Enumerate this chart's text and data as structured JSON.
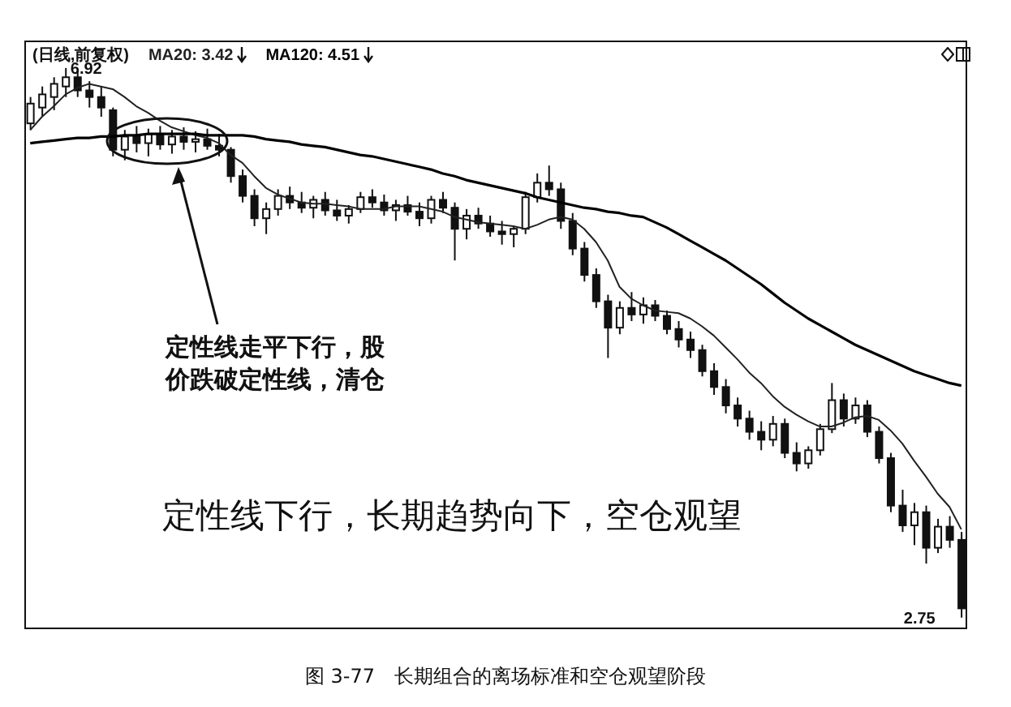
{
  "chart_data": {
    "type": "candlestick",
    "title": "图 3-77　长期组合的离场标准和空仓观望阶段",
    "categories": [
      null,
      null,
      null,
      null,
      null,
      null,
      null,
      null,
      null,
      null,
      null,
      null,
      null,
      null,
      null,
      null,
      null,
      null,
      null,
      null,
      null,
      null,
      null,
      null,
      null,
      null,
      null,
      null,
      null,
      null,
      null,
      null,
      null,
      null,
      null,
      null,
      null,
      null,
      null,
      null,
      null,
      null,
      null,
      null,
      null,
      null,
      null,
      null,
      null,
      null,
      null,
      null,
      null,
      null,
      null,
      null,
      null,
      null,
      null,
      null,
      null,
      null,
      null,
      null,
      null,
      null,
      null,
      null,
      null,
      null,
      null,
      null,
      null,
      null,
      null,
      null,
      null,
      null,
      null,
      null
    ],
    "ohlc": [
      [
        6.5,
        6.7,
        6.45,
        6.65
      ],
      [
        6.62,
        6.78,
        6.55,
        6.72
      ],
      [
        6.7,
        6.85,
        6.6,
        6.8
      ],
      [
        6.78,
        6.92,
        6.7,
        6.85
      ],
      [
        6.85,
        6.9,
        6.7,
        6.75
      ],
      [
        6.75,
        6.82,
        6.62,
        6.7
      ],
      [
        6.7,
        6.78,
        6.55,
        6.62
      ],
      [
        6.6,
        6.62,
        6.25,
        6.3
      ],
      [
        6.3,
        6.45,
        6.22,
        6.4
      ],
      [
        6.4,
        6.48,
        6.28,
        6.35
      ],
      [
        6.35,
        6.46,
        6.25,
        6.42
      ],
      [
        6.42,
        6.48,
        6.3,
        6.34
      ],
      [
        6.34,
        6.45,
        6.27,
        6.4
      ],
      [
        6.4,
        6.47,
        6.3,
        6.36
      ],
      [
        6.36,
        6.44,
        6.28,
        6.38
      ],
      [
        6.38,
        6.46,
        6.3,
        6.33
      ],
      [
        6.33,
        6.42,
        6.25,
        6.3
      ],
      [
        6.3,
        6.32,
        6.05,
        6.1
      ],
      [
        6.1,
        6.15,
        5.9,
        5.95
      ],
      [
        5.95,
        6.0,
        5.72,
        5.78
      ],
      [
        5.78,
        5.9,
        5.66,
        5.85
      ],
      [
        5.85,
        6.0,
        5.8,
        5.95
      ],
      [
        5.95,
        6.02,
        5.85,
        5.9
      ],
      [
        5.9,
        5.98,
        5.82,
        5.86
      ],
      [
        5.86,
        5.95,
        5.78,
        5.92
      ],
      [
        5.92,
        5.98,
        5.8,
        5.84
      ],
      [
        5.84,
        5.92,
        5.76,
        5.8
      ],
      [
        5.8,
        5.88,
        5.74,
        5.85
      ],
      [
        5.85,
        5.98,
        5.82,
        5.94
      ],
      [
        5.94,
        6.0,
        5.86,
        5.9
      ],
      [
        5.9,
        5.96,
        5.8,
        5.84
      ],
      [
        5.84,
        5.92,
        5.76,
        5.88
      ],
      [
        5.88,
        5.95,
        5.8,
        5.83
      ],
      [
        5.83,
        5.9,
        5.72,
        5.78
      ],
      [
        5.78,
        5.95,
        5.74,
        5.92
      ],
      [
        5.92,
        5.98,
        5.82,
        5.86
      ],
      [
        5.86,
        5.9,
        5.46,
        5.7
      ],
      [
        5.7,
        5.85,
        5.62,
        5.8
      ],
      [
        5.8,
        5.86,
        5.7,
        5.74
      ],
      [
        5.74,
        5.8,
        5.64,
        5.68
      ],
      [
        5.68,
        5.76,
        5.58,
        5.66
      ],
      [
        5.66,
        5.72,
        5.56,
        5.7
      ],
      [
        5.7,
        5.98,
        5.66,
        5.94
      ],
      [
        5.94,
        6.12,
        5.9,
        6.05
      ],
      [
        6.05,
        6.18,
        5.95,
        6.0
      ],
      [
        6.0,
        6.05,
        5.7,
        5.76
      ],
      [
        5.76,
        5.82,
        5.5,
        5.55
      ],
      [
        5.55,
        5.6,
        5.3,
        5.35
      ],
      [
        5.35,
        5.4,
        5.1,
        5.15
      ],
      [
        5.15,
        5.2,
        4.72,
        4.95
      ],
      [
        4.95,
        5.15,
        4.9,
        5.1
      ],
      [
        5.1,
        5.22,
        5.0,
        5.05
      ],
      [
        5.05,
        5.18,
        4.98,
        5.12
      ],
      [
        5.12,
        5.16,
        5.0,
        5.04
      ],
      [
        5.04,
        5.08,
        4.9,
        4.94
      ],
      [
        4.94,
        5.0,
        4.8,
        4.86
      ],
      [
        4.86,
        4.92,
        4.72,
        4.78
      ],
      [
        4.78,
        4.82,
        4.58,
        4.62
      ],
      [
        4.62,
        4.68,
        4.44,
        4.5
      ],
      [
        4.5,
        4.56,
        4.3,
        4.36
      ],
      [
        4.36,
        4.42,
        4.2,
        4.26
      ],
      [
        4.26,
        4.32,
        4.1,
        4.16
      ],
      [
        4.16,
        4.24,
        4.02,
        4.1
      ],
      [
        4.1,
        4.28,
        4.05,
        4.22
      ],
      [
        4.22,
        4.26,
        3.96,
        4.0
      ],
      [
        4.0,
        4.08,
        3.86,
        3.92
      ],
      [
        3.92,
        4.05,
        3.88,
        4.02
      ],
      [
        4.02,
        4.22,
        3.98,
        4.18
      ],
      [
        4.18,
        4.53,
        4.15,
        4.4
      ],
      [
        4.4,
        4.45,
        4.2,
        4.26
      ],
      [
        4.26,
        4.42,
        4.22,
        4.36
      ],
      [
        4.36,
        4.4,
        4.12,
        4.16
      ],
      [
        4.16,
        4.2,
        3.92,
        3.96
      ],
      [
        3.96,
        4.0,
        3.55,
        3.6
      ],
      [
        3.6,
        3.72,
        3.4,
        3.45
      ],
      [
        3.45,
        3.62,
        3.3,
        3.55
      ],
      [
        3.55,
        3.6,
        3.16,
        3.28
      ],
      [
        3.28,
        3.5,
        3.24,
        3.44
      ],
      [
        3.44,
        3.52,
        3.28,
        3.34
      ],
      [
        3.34,
        3.4,
        2.75,
        2.82
      ]
    ],
    "series": [
      {
        "name": "MA20: 3.42",
        "type": "line",
        "color": "#222222",
        "values": [
          6.45,
          6.55,
          6.63,
          6.72,
          6.77,
          6.8,
          6.78,
          6.76,
          6.7,
          6.63,
          6.58,
          6.52,
          6.47,
          6.44,
          6.41,
          6.39,
          6.35,
          6.26,
          6.2,
          6.1,
          6.01,
          5.96,
          5.93,
          5.9,
          5.89,
          5.89,
          5.88,
          5.87,
          5.85,
          5.85,
          5.85,
          5.87,
          5.87,
          5.87,
          5.85,
          5.83,
          5.79,
          5.77,
          5.75,
          5.74,
          5.73,
          5.72,
          5.7,
          5.73,
          5.77,
          5.79,
          5.77,
          5.7,
          5.6,
          5.46,
          5.26,
          5.17,
          5.12,
          5.08,
          5.07,
          5.06,
          5.02,
          4.96,
          4.89,
          4.8,
          4.71,
          4.61,
          4.53,
          4.43,
          4.35,
          4.29,
          4.24,
          4.2,
          4.2,
          4.23,
          4.27,
          4.28,
          4.25,
          4.17,
          4.07,
          3.94,
          3.82,
          3.69,
          3.59,
          3.42
        ]
      },
      {
        "name": "MA120: 4.51",
        "type": "line",
        "color": "#000000",
        "values": [
          6.35,
          6.36,
          6.37,
          6.38,
          6.39,
          6.39,
          6.4,
          6.4,
          6.41,
          6.41,
          6.42,
          6.42,
          6.42,
          6.42,
          6.42,
          6.41,
          6.41,
          6.41,
          6.41,
          6.4,
          6.38,
          6.37,
          6.36,
          6.34,
          6.33,
          6.32,
          6.3,
          6.28,
          6.26,
          6.25,
          6.23,
          6.21,
          6.19,
          6.17,
          6.15,
          6.12,
          6.1,
          6.07,
          6.05,
          6.03,
          6.01,
          5.99,
          5.97,
          5.94,
          5.92,
          5.9,
          5.88,
          5.86,
          5.85,
          5.83,
          5.82,
          5.8,
          5.79,
          5.75,
          5.71,
          5.66,
          5.61,
          5.56,
          5.51,
          5.46,
          5.4,
          5.34,
          5.28,
          5.21,
          5.14,
          5.08,
          5.02,
          4.97,
          4.92,
          4.87,
          4.82,
          4.78,
          4.74,
          4.7,
          4.66,
          4.62,
          4.59,
          4.56,
          4.53,
          4.51
        ]
      }
    ],
    "annotations": [
      "(日线,前复权)",
      "6.92",
      "2.75",
      "定性线走平下行，股价跌破定性线，清仓",
      "定性线下行，长期趋势向下，空仓观望"
    ]
  }
}
